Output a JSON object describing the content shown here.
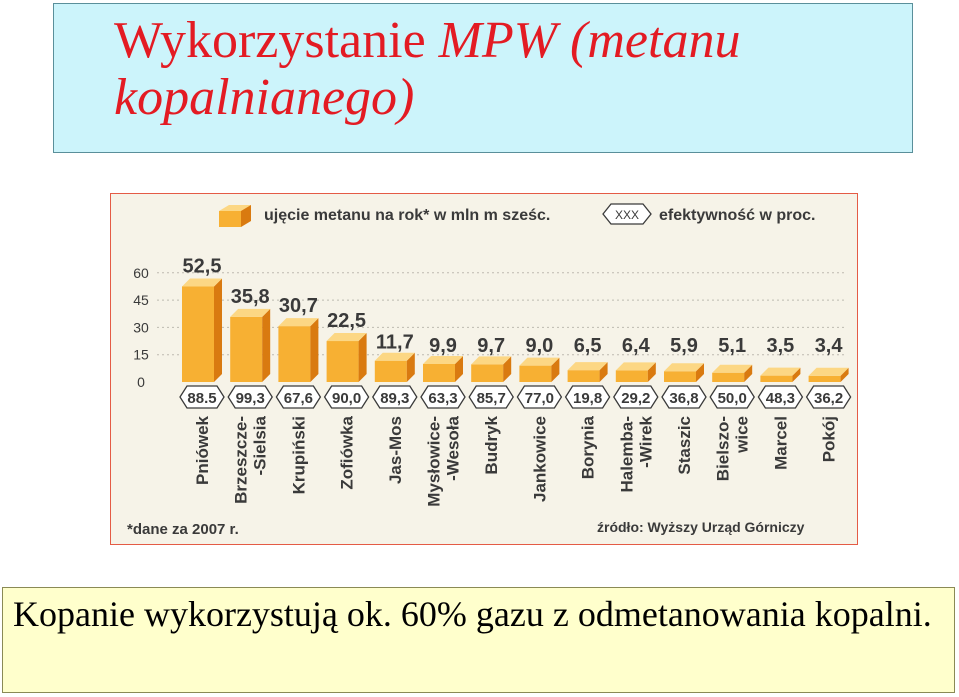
{
  "title": {
    "part1": "Wykorzystanie ",
    "part2": "MPW (metanu kopalnianego)"
  },
  "caption": "Kopanie  wykorzystują  ok.  60%  gazu  z  odmetanowania kopalni.",
  "chart_data": {
    "type": "bar",
    "legend": {
      "series_label": "ujęcie metanu na rok* w mln m sześc.",
      "efficiency_symbol": "XXX",
      "efficiency_label": "efektywność w proc."
    },
    "categories": [
      "Pniówek",
      "Brzeszcze--Sielsia",
      "Krupiński",
      "Zofiówka",
      "Jas-Mos",
      "Mysłowice--Wesoła",
      "Budryk",
      "Jankowice",
      "Borynia",
      "Halemba--Wirek",
      "Staszic",
      "Bielszo-wice",
      "Marcel",
      "Pokój"
    ],
    "category_lines": [
      [
        "Pniówek"
      ],
      [
        "Brzeszcze-",
        "-Sielsia"
      ],
      [
        "Krupiński"
      ],
      [
        "Zofiówka"
      ],
      [
        "Jas-Mos"
      ],
      [
        "Mysłowice-",
        "-Wesoła"
      ],
      [
        "Budryk"
      ],
      [
        "Jankowice"
      ],
      [
        "Borynia"
      ],
      [
        "Halemba-",
        "-Wirek"
      ],
      [
        "Staszic"
      ],
      [
        "Bielszo-",
        "wice"
      ],
      [
        "Marcel"
      ],
      [
        "Pokój"
      ]
    ],
    "series": [
      {
        "values": [
          52.5,
          35.8,
          30.7,
          22.5,
          11.7,
          9.9,
          9.7,
          9.0,
          6.5,
          6.4,
          5.9,
          5.1,
          3.5,
          3.4
        ]
      }
    ],
    "value_labels": [
      "52,5",
      "35,8",
      "30,7",
      "22,5",
      "11,7",
      "9,9",
      "9,7",
      "9,0",
      "6,5",
      "6,4",
      "5,9",
      "5,1",
      "3,5",
      "3,4"
    ],
    "efficiency_labels": [
      "88.5",
      "99,3",
      "67,6",
      "90,0",
      "89,3",
      "63,3",
      "85,7",
      "77,0",
      "19,8",
      "29,2",
      "36,8",
      "50,0",
      "48,3",
      "36,2"
    ],
    "y_ticks": [
      "60",
      "45",
      "30",
      "15",
      "0"
    ],
    "ylim": [
      0,
      60
    ],
    "grid": true,
    "footnote": "*dane za 2007 r.",
    "source": "źródło:  Wyższy Urząd Górniczy",
    "colors": {
      "bar_front": "#f7b033",
      "bar_side": "#d97a10",
      "bar_top": "#fcd784",
      "text": "#3a3a3a",
      "grid": "#bdbab0"
    }
  }
}
